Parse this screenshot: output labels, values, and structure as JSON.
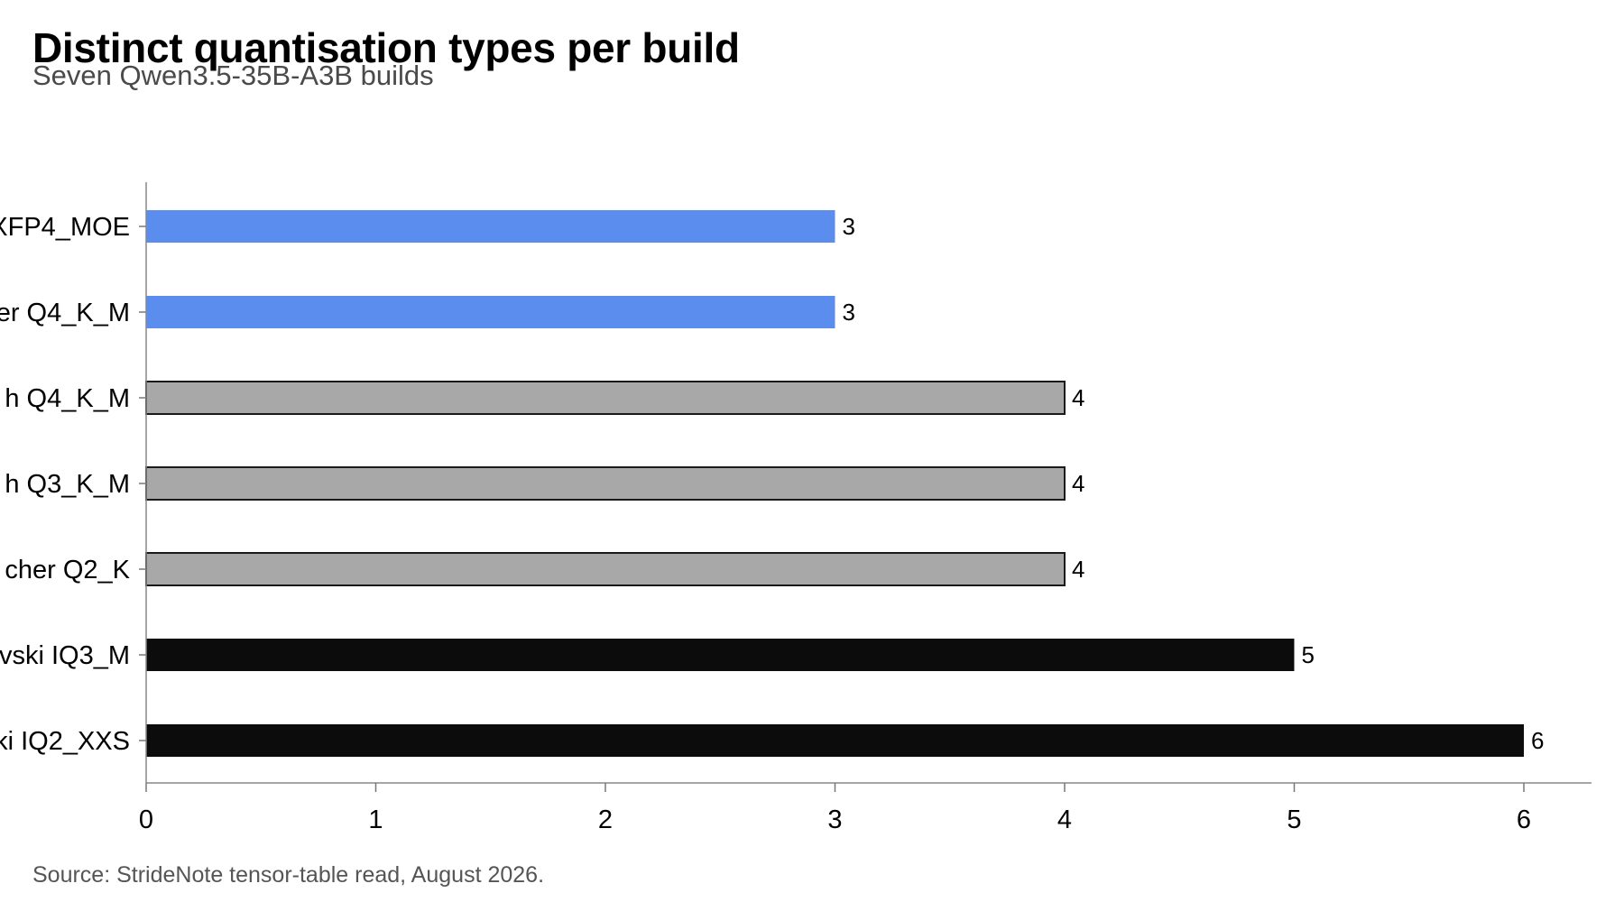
{
  "title": "Distinct quantisation types per build",
  "subtitle": "Seven Qwen3.5-35B-A3B builds",
  "source": "Source: StrideNote tensor-table read, August 2026.",
  "chart_data": {
    "type": "bar",
    "orientation": "horizontal",
    "categories": [
      "XFP4_MOE",
      "er Q4_K_M",
      "h Q4_K_M",
      "h Q3_K_M",
      "cher Q2_K",
      "vski IQ3_M",
      "ki IQ2_XXS"
    ],
    "values": [
      3,
      3,
      4,
      4,
      4,
      5,
      6
    ],
    "colors": [
      "#5b8def",
      "#5b8def",
      "#a8a8a8",
      "#a8a8a8",
      "#a8a8a8",
      "#0c0c0c",
      "#0c0c0c"
    ],
    "outlined": [
      false,
      false,
      true,
      true,
      true,
      false,
      false
    ],
    "xlim": [
      0,
      6.3
    ],
    "xticks": [
      0,
      1,
      2,
      3,
      4,
      5,
      6
    ],
    "grid": false,
    "xlabel": "",
    "ylabel": ""
  }
}
